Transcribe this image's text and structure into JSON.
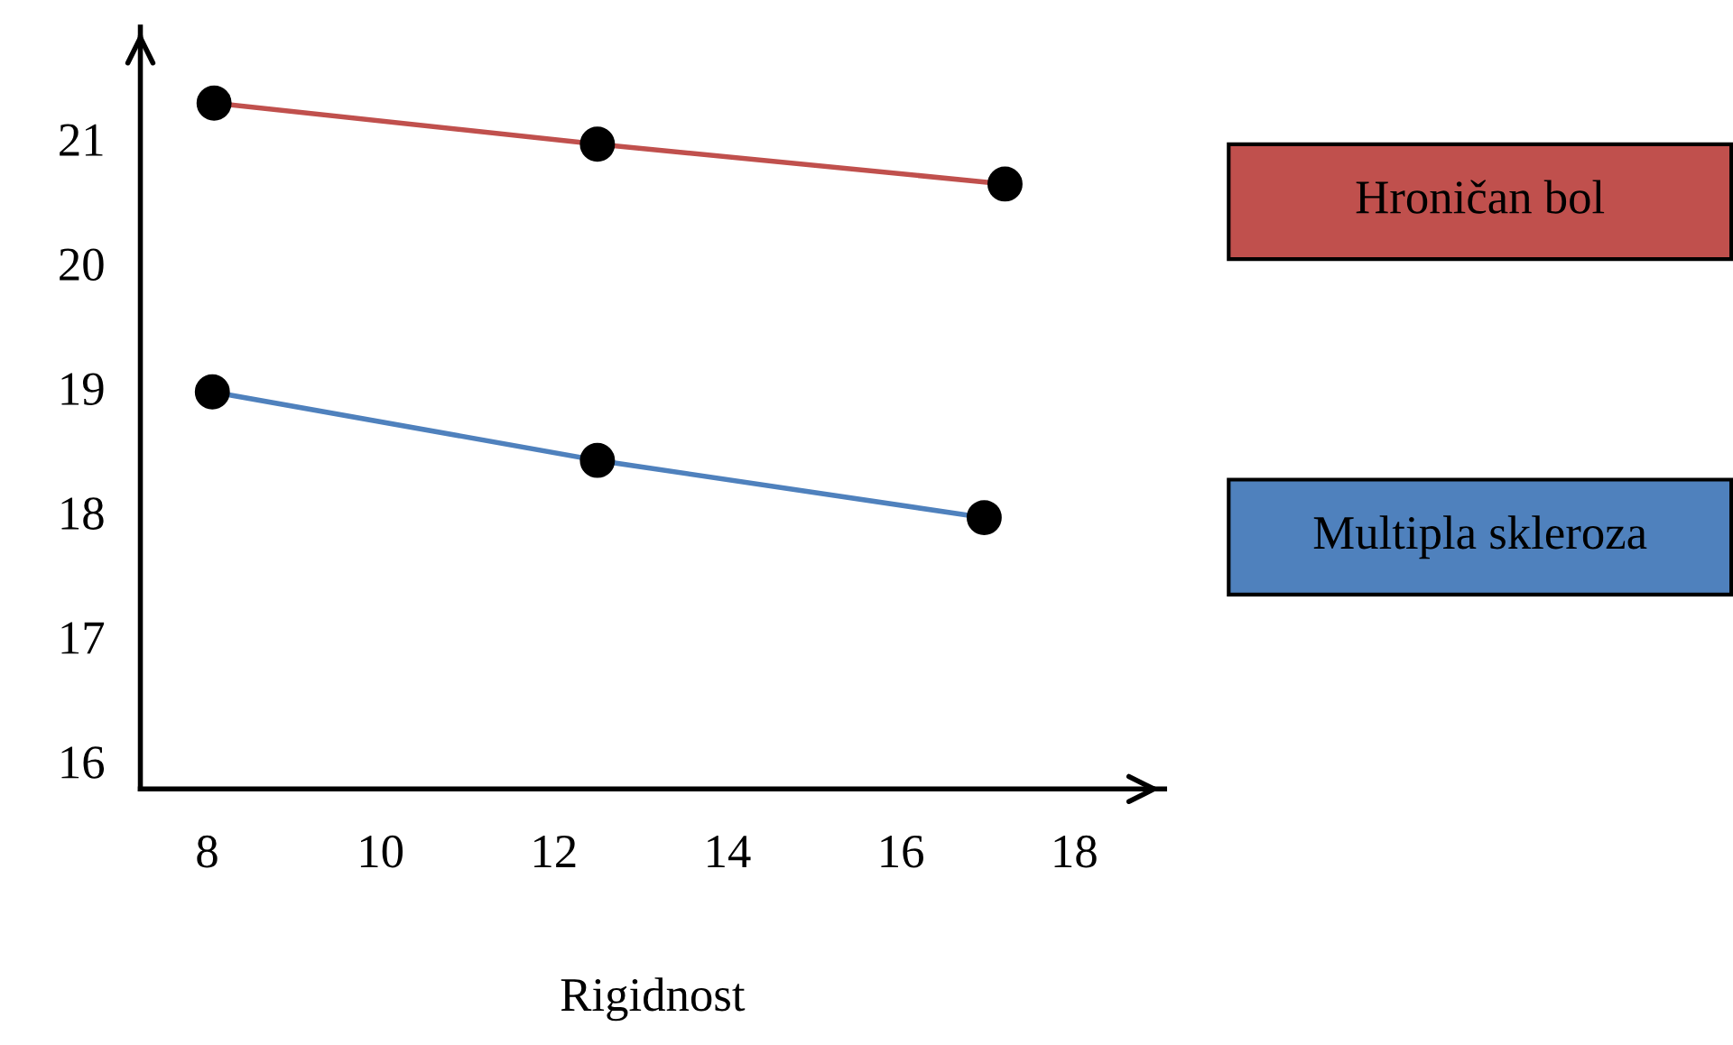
{
  "chart_data": {
    "type": "line",
    "xlabel": "Rigidnost",
    "xlim": [
      7.23,
      19.04
    ],
    "ylim": [
      15.78,
      21.9
    ],
    "xticks": [
      8,
      10,
      12,
      14,
      16,
      18
    ],
    "yticks": [
      16,
      17,
      18,
      19,
      20,
      21
    ],
    "marker": "circle",
    "legend": "right",
    "grid": false,
    "series": [
      {
        "name": "Hroničan bol",
        "color": "#c0504d",
        "x": [
          8.08,
          12.5,
          17.2
        ],
        "values": [
          21.29,
          20.96,
          20.64
        ]
      },
      {
        "name": "Multipla skleroza",
        "color": "#4f81bd",
        "x": [
          8.06,
          12.5,
          16.96
        ],
        "values": [
          18.97,
          18.42,
          17.96
        ]
      }
    ]
  }
}
